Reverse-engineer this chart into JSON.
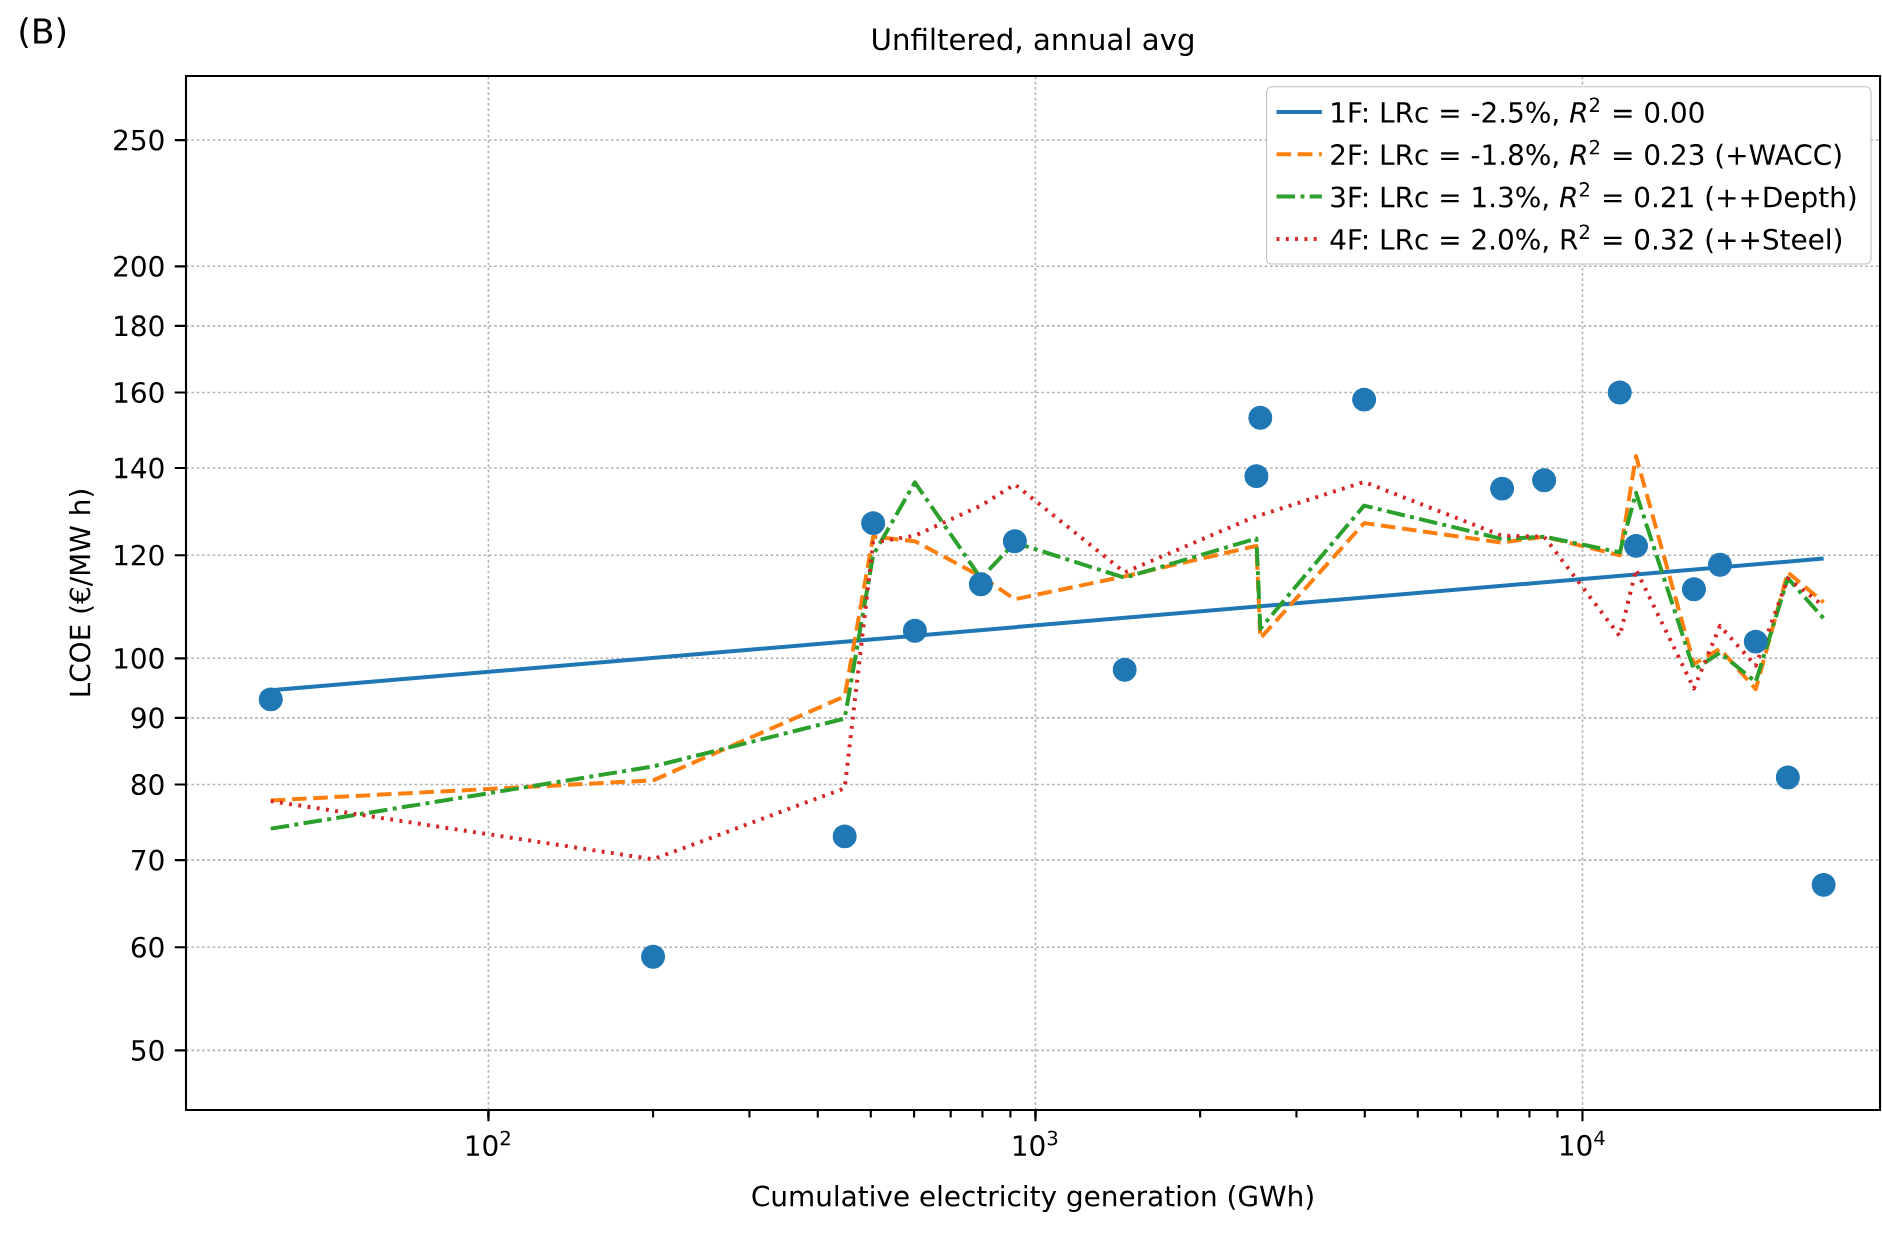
{
  "chart_data": {
    "type": "scatter",
    "title": "Unfiltered, annual avg",
    "xlabel": "Cumulative electricity generation (GWh)",
    "ylabel": "LCOE (€/MW h)",
    "annotations": [
      "(B)"
    ],
    "log": "xy",
    "grid": true,
    "legend": "top right",
    "xlim": [
      28,
      35000
    ],
    "ylim": [
      45,
      280
    ],
    "xticks": [
      {
        "value": 100,
        "label": "10$^{2}$"
      },
      {
        "value": 1000,
        "label": "10$^{3}$"
      },
      {
        "value": 10000,
        "label": "10$^{4}$"
      }
    ],
    "yticks": [
      50,
      60,
      70,
      80,
      90,
      100,
      120,
      140,
      160,
      180,
      200,
      250
    ],
    "series": [
      {
        "type": "scatter",
        "color": "#1f77b4",
        "x": [
          40,
          200,
          448,
          505,
          602,
          795,
          917,
          1456,
          2535,
          2577,
          3990,
          7130,
          8510,
          11700,
          12530,
          15990,
          17840,
          20740,
          23740,
          27600
        ],
        "values": [
          93,
          59,
          73,
          127,
          105,
          114,
          123,
          98,
          138,
          153,
          158,
          135,
          137,
          160,
          122,
          113,
          118,
          103,
          81,
          67
        ]
      },
      {
        "type": "line",
        "name": "1F: LRc = -2.5%, *R*$^{2}$ = 0.00",
        "line_style": "solid",
        "marker": "none",
        "color": "#1f77b4",
        "x": [
          40,
          27600
        ],
        "values": [
          94.5,
          119.3
        ]
      },
      {
        "type": "line",
        "name": "2F: LRc = -1.8%, *R*$^{2}$ = 0.23 (+WACC)",
        "line_style": "dashed",
        "marker": "none",
        "color": "#ff7f0e",
        "x": [
          40,
          200,
          448,
          505,
          602,
          795,
          917,
          1456,
          2535,
          2577,
          3990,
          7130,
          8510,
          11700,
          12530,
          15990,
          17840,
          20740,
          23740,
          27600
        ],
        "values": [
          77.8,
          80.6,
          93.5,
          124,
          123,
          115.6,
          111,
          115.6,
          122,
          103.6,
          127,
          122.7,
          124,
          120,
          143,
          99,
          101.7,
          94.7,
          116.4,
          110.4
        ]
      },
      {
        "type": "line",
        "name": "3F: LRc = 1.3%, *R*$^{2}$ = 0.21 (++Depth)",
        "line_style": "dashdot",
        "marker": "none",
        "color": "#2ca02c",
        "x": [
          40,
          200,
          448,
          505,
          602,
          795,
          917,
          1456,
          2535,
          2577,
          3990,
          7130,
          8510,
          11700,
          12530,
          15990,
          17840,
          20740,
          23740,
          27600
        ],
        "values": [
          74,
          82.6,
          89.9,
          120,
          136.5,
          115.2,
          122.7,
          115.3,
          123.6,
          105.4,
          131,
          123.5,
          124,
          120.6,
          134,
          98,
          101,
          95.9,
          115.2,
          107.3
        ]
      },
      {
        "type": "line",
        "name": "4F: LRc = 2.0%, R$^{2}$ = 0.32 (++Steel)",
        "line_style": "dotted",
        "marker": "none",
        "color": "#d62728",
        "x": [
          40,
          200,
          448,
          505,
          602,
          795,
          917,
          1456,
          2535,
          2577,
          3990,
          7130,
          8510,
          11700,
          12530,
          15990,
          17840,
          20740,
          23740,
          27600
        ],
        "values": [
          77.7,
          70.1,
          79.5,
          122.7,
          124.2,
          131,
          136,
          116.4,
          128.6,
          128.8,
          136.6,
          124.2,
          124,
          104,
          117,
          94.8,
          105.9,
          98.7,
          115.2,
          109.7
        ]
      }
    ]
  }
}
